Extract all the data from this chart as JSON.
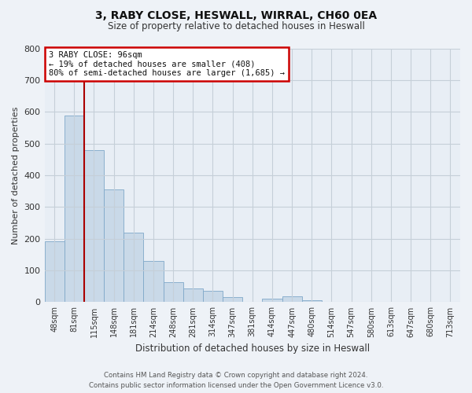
{
  "title": "3, RABY CLOSE, HESWALL, WIRRAL, CH60 0EA",
  "subtitle": "Size of property relative to detached houses in Heswall",
  "xlabel": "Distribution of detached houses by size in Heswall",
  "ylabel": "Number of detached properties",
  "bar_labels": [
    "48sqm",
    "81sqm",
    "115sqm",
    "148sqm",
    "181sqm",
    "214sqm",
    "248sqm",
    "281sqm",
    "314sqm",
    "347sqm",
    "381sqm",
    "414sqm",
    "447sqm",
    "480sqm",
    "514sqm",
    "547sqm",
    "580sqm",
    "613sqm",
    "647sqm",
    "680sqm",
    "713sqm"
  ],
  "bar_values": [
    193,
    588,
    480,
    355,
    218,
    130,
    62,
    42,
    35,
    17,
    0,
    12,
    18,
    7,
    0,
    0,
    0,
    0,
    0,
    0,
    0
  ],
  "bar_color": "#c9d9e8",
  "bar_edge_color": "#7fa8c8",
  "vline_color": "#aa0000",
  "ylim": [
    0,
    800
  ],
  "yticks": [
    0,
    100,
    200,
    300,
    400,
    500,
    600,
    700,
    800
  ],
  "annotation_text": "3 RABY CLOSE: 96sqm\n← 19% of detached houses are smaller (408)\n80% of semi-detached houses are larger (1,685) →",
  "footer_line1": "Contains HM Land Registry data © Crown copyright and database right 2024.",
  "footer_line2": "Contains public sector information licensed under the Open Government Licence v3.0.",
  "bg_color": "#eef2f7",
  "plot_bg_color": "#e8eef5",
  "grid_color": "#c5cfd8"
}
